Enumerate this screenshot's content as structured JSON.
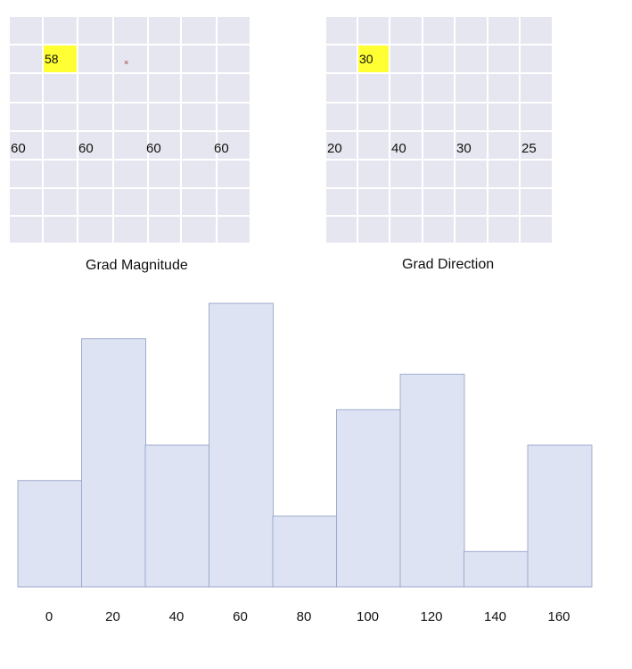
{
  "magnitude": {
    "title": "Grad Magnitude",
    "highlight_value": "58",
    "marker": "×",
    "row_values": [
      "60",
      "60",
      "60",
      "60"
    ]
  },
  "direction": {
    "title": "Grad Direction",
    "highlight_value": "30",
    "row_values": [
      "20",
      "40",
      "30",
      "25"
    ]
  },
  "chart_data": {
    "type": "bar",
    "categories": [
      "0",
      "20",
      "40",
      "60",
      "80",
      "100",
      "120",
      "140",
      "160"
    ],
    "values": [
      3,
      7,
      4,
      8,
      2,
      5,
      6,
      1,
      4
    ],
    "title": "",
    "xlabel": "",
    "ylabel": "",
    "ylim": [
      0,
      8
    ],
    "grid": false,
    "colors": {
      "bar_fill": "#dde3f3",
      "bar_edge": "#8f9dc4"
    }
  }
}
